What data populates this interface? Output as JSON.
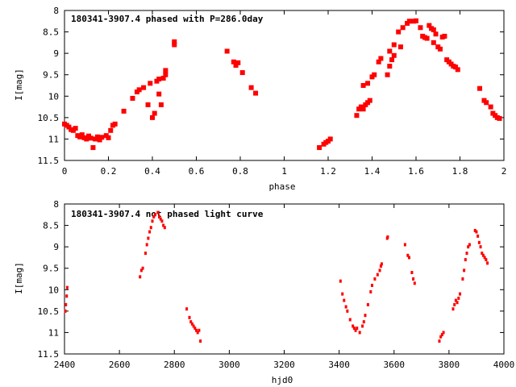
{
  "chart_data": [
    {
      "type": "scatter",
      "title": "180341-3907.4 phased with P=286.0day",
      "xlabel": "phase",
      "ylabel": "I[mag]",
      "xlim": [
        0,
        2
      ],
      "ylim": [
        8,
        11.5
      ],
      "y_inverted": true,
      "grid": false,
      "marker_color": "#ff0000",
      "xticks": [
        "0",
        "0.2",
        "0.4",
        "0.6",
        "0.8",
        "1",
        "1.2",
        "1.4",
        "1.6",
        "1.8",
        "2"
      ],
      "yticks": [
        "8",
        "8.5",
        "9",
        "9.5",
        "10",
        "10.5",
        "11",
        "11.5"
      ],
      "points": [
        [
          0.0,
          10.65
        ],
        [
          0.01,
          10.68
        ],
        [
          0.02,
          10.72
        ],
        [
          0.03,
          10.78
        ],
        [
          0.04,
          10.8
        ],
        [
          0.05,
          10.75
        ],
        [
          0.06,
          10.92
        ],
        [
          0.07,
          10.95
        ],
        [
          0.08,
          10.9
        ],
        [
          0.09,
          10.97
        ],
        [
          0.1,
          11.0
        ],
        [
          0.11,
          10.93
        ],
        [
          0.12,
          10.98
        ],
        [
          0.13,
          11.2
        ],
        [
          0.14,
          11.0
        ],
        [
          0.15,
          10.95
        ],
        [
          0.16,
          11.02
        ],
        [
          0.17,
          10.96
        ],
        [
          0.19,
          10.92
        ],
        [
          0.2,
          10.97
        ],
        [
          0.21,
          10.8
        ],
        [
          0.22,
          10.68
        ],
        [
          0.23,
          10.65
        ],
        [
          0.27,
          10.35
        ],
        [
          0.31,
          10.05
        ],
        [
          0.33,
          9.9
        ],
        [
          0.34,
          9.85
        ],
        [
          0.36,
          9.8
        ],
        [
          0.38,
          10.2
        ],
        [
          0.39,
          9.7
        ],
        [
          0.4,
          10.5
        ],
        [
          0.41,
          10.4
        ],
        [
          0.42,
          9.65
        ],
        [
          0.43,
          9.6
        ],
        [
          0.43,
          9.95
        ],
        [
          0.44,
          10.2
        ],
        [
          0.45,
          9.58
        ],
        [
          0.46,
          9.5
        ],
        [
          0.46,
          9.4
        ],
        [
          0.5,
          8.8
        ],
        [
          0.5,
          8.73
        ],
        [
          0.74,
          8.95
        ],
        [
          0.77,
          9.2
        ],
        [
          0.78,
          9.28
        ],
        [
          0.79,
          9.22
        ],
        [
          0.81,
          9.45
        ],
        [
          0.85,
          9.8
        ],
        [
          0.87,
          9.93
        ],
        [
          1.16,
          11.2
        ],
        [
          1.18,
          11.12
        ],
        [
          1.19,
          11.08
        ],
        [
          1.2,
          11.05
        ],
        [
          1.21,
          11.0
        ],
        [
          1.33,
          10.45
        ],
        [
          1.34,
          10.3
        ],
        [
          1.35,
          10.25
        ],
        [
          1.36,
          10.3
        ],
        [
          1.37,
          10.2
        ],
        [
          1.38,
          10.15
        ],
        [
          1.39,
          10.1
        ],
        [
          1.36,
          9.75
        ],
        [
          1.38,
          9.7
        ],
        [
          1.4,
          9.55
        ],
        [
          1.41,
          9.5
        ],
        [
          1.43,
          9.2
        ],
        [
          1.44,
          9.12
        ],
        [
          1.47,
          9.5
        ],
        [
          1.48,
          9.3
        ],
        [
          1.48,
          8.95
        ],
        [
          1.49,
          9.15
        ],
        [
          1.5,
          8.8
        ],
        [
          1.5,
          9.05
        ],
        [
          1.52,
          8.5
        ],
        [
          1.53,
          8.85
        ],
        [
          1.54,
          8.4
        ],
        [
          1.56,
          8.3
        ],
        [
          1.57,
          8.25
        ],
        [
          1.59,
          8.25
        ],
        [
          1.6,
          8.24
        ],
        [
          1.62,
          8.4
        ],
        [
          1.63,
          8.6
        ],
        [
          1.64,
          8.63
        ],
        [
          1.65,
          8.65
        ],
        [
          1.66,
          8.35
        ],
        [
          1.67,
          8.42
        ],
        [
          1.68,
          8.45
        ],
        [
          1.68,
          8.75
        ],
        [
          1.69,
          8.55
        ],
        [
          1.7,
          8.85
        ],
        [
          1.71,
          8.9
        ],
        [
          1.72,
          8.62
        ],
        [
          1.73,
          8.6
        ],
        [
          1.74,
          9.15
        ],
        [
          1.75,
          9.2
        ],
        [
          1.76,
          9.25
        ],
        [
          1.77,
          9.3
        ],
        [
          1.78,
          9.32
        ],
        [
          1.79,
          9.38
        ],
        [
          1.89,
          9.82
        ],
        [
          1.91,
          10.1
        ],
        [
          1.92,
          10.15
        ],
        [
          1.94,
          10.25
        ],
        [
          1.95,
          10.4
        ],
        [
          1.96,
          10.45
        ],
        [
          1.97,
          10.5
        ],
        [
          1.98,
          10.52
        ]
      ]
    },
    {
      "type": "scatter",
      "title": "180341-3907.4 not phased light curve",
      "xlabel": "hjd0",
      "ylabel": "I[mag]",
      "xlim": [
        2400,
        4000
      ],
      "ylim": [
        8,
        11.5
      ],
      "y_inverted": true,
      "grid": false,
      "marker_color": "#ff0000",
      "xticks": [
        "2400",
        "2600",
        "2800",
        "3000",
        "3200",
        "3400",
        "3600",
        "3800",
        "4000"
      ],
      "yticks": [
        "8",
        "8.5",
        "9",
        "9.5",
        "10",
        "10.5",
        "11",
        "11.5"
      ],
      "points": [
        [
          2403,
          10.5
        ],
        [
          2405,
          10.35
        ],
        [
          2408,
          10.15
        ],
        [
          2410,
          9.95
        ],
        [
          2675,
          9.7
        ],
        [
          2680,
          9.55
        ],
        [
          2685,
          9.5
        ],
        [
          2695,
          9.15
        ],
        [
          2700,
          8.95
        ],
        [
          2705,
          8.8
        ],
        [
          2710,
          8.65
        ],
        [
          2715,
          8.55
        ],
        [
          2720,
          8.4
        ],
        [
          2725,
          8.3
        ],
        [
          2730,
          8.25
        ],
        [
          2740,
          8.2
        ],
        [
          2745,
          8.3
        ],
        [
          2750,
          8.35
        ],
        [
          2755,
          8.4
        ],
        [
          2760,
          8.5
        ],
        [
          2765,
          8.55
        ],
        [
          2845,
          10.45
        ],
        [
          2855,
          10.65
        ],
        [
          2860,
          10.75
        ],
        [
          2865,
          10.8
        ],
        [
          2870,
          10.85
        ],
        [
          2875,
          10.9
        ],
        [
          2880,
          10.95
        ],
        [
          2885,
          11.0
        ],
        [
          2890,
          10.95
        ],
        [
          2895,
          11.2
        ],
        [
          3405,
          9.8
        ],
        [
          3412,
          10.1
        ],
        [
          3418,
          10.25
        ],
        [
          3425,
          10.4
        ],
        [
          3430,
          10.5
        ],
        [
          3440,
          10.7
        ],
        [
          3450,
          10.85
        ],
        [
          3455,
          10.9
        ],
        [
          3460,
          10.95
        ],
        [
          3465,
          10.9
        ],
        [
          3475,
          11.0
        ],
        [
          3485,
          10.85
        ],
        [
          3490,
          10.75
        ],
        [
          3495,
          10.6
        ],
        [
          3505,
          10.35
        ],
        [
          3515,
          10.05
        ],
        [
          3520,
          9.9
        ],
        [
          3530,
          9.75
        ],
        [
          3540,
          9.65
        ],
        [
          3548,
          9.55
        ],
        [
          3552,
          9.45
        ],
        [
          3555,
          9.4
        ],
        [
          3575,
          8.8
        ],
        [
          3577,
          8.77
        ],
        [
          3640,
          8.95
        ],
        [
          3650,
          9.2
        ],
        [
          3655,
          9.25
        ],
        [
          3665,
          9.6
        ],
        [
          3670,
          9.75
        ],
        [
          3675,
          9.85
        ],
        [
          3765,
          11.2
        ],
        [
          3770,
          11.1
        ],
        [
          3775,
          11.05
        ],
        [
          3780,
          11.0
        ],
        [
          3815,
          10.45
        ],
        [
          3820,
          10.35
        ],
        [
          3825,
          10.25
        ],
        [
          3830,
          10.3
        ],
        [
          3835,
          10.2
        ],
        [
          3840,
          10.1
        ],
        [
          3850,
          9.75
        ],
        [
          3855,
          9.55
        ],
        [
          3860,
          9.3
        ],
        [
          3865,
          9.15
        ],
        [
          3870,
          9.0
        ],
        [
          3875,
          8.95
        ],
        [
          3895,
          8.62
        ],
        [
          3900,
          8.65
        ],
        [
          3905,
          8.75
        ],
        [
          3910,
          8.9
        ],
        [
          3915,
          9.0
        ],
        [
          3920,
          9.15
        ],
        [
          3925,
          9.2
        ],
        [
          3930,
          9.25
        ],
        [
          3935,
          9.3
        ],
        [
          3940,
          9.38
        ]
      ]
    }
  ]
}
